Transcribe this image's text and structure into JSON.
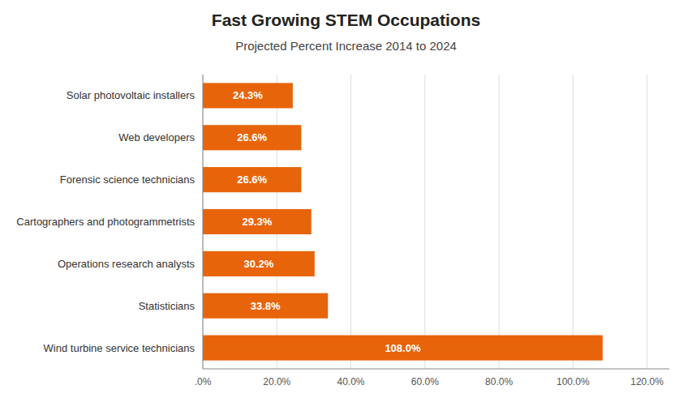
{
  "chart_data": {
    "type": "bar",
    "orientation": "horizontal",
    "title": "Fast Growing STEM Occupations",
    "subtitle": "Projected Percent Increase 2014 to 2024",
    "categories": [
      "Wind turbine service technicians",
      "Statisticians",
      "Operations research analysts",
      "Cartographers and photogrammetrists",
      "Forensic science technicians",
      "Web developers",
      "Solar photovoltaic installers"
    ],
    "values": [
      108.0,
      33.8,
      30.2,
      29.3,
      26.6,
      26.6,
      24.3
    ],
    "value_labels": [
      "108.0%",
      "33.8%",
      "30.2%",
      "29.3%",
      "26.6%",
      "26.6%",
      "24.3%"
    ],
    "data_labels": true,
    "color": "#E8640A",
    "xlim": [
      0,
      126
    ],
    "xticks": [
      {
        "value": 0,
        "label": ".0%"
      },
      {
        "value": 20,
        "label": "20.0%"
      },
      {
        "value": 40,
        "label": "40.0%"
      },
      {
        "value": 60,
        "label": "60.0%"
      },
      {
        "value": 80,
        "label": "80.0%"
      },
      {
        "value": 100,
        "label": "100.0%"
      },
      {
        "value": 120,
        "label": "120.0%"
      }
    ],
    "grid": true
  }
}
